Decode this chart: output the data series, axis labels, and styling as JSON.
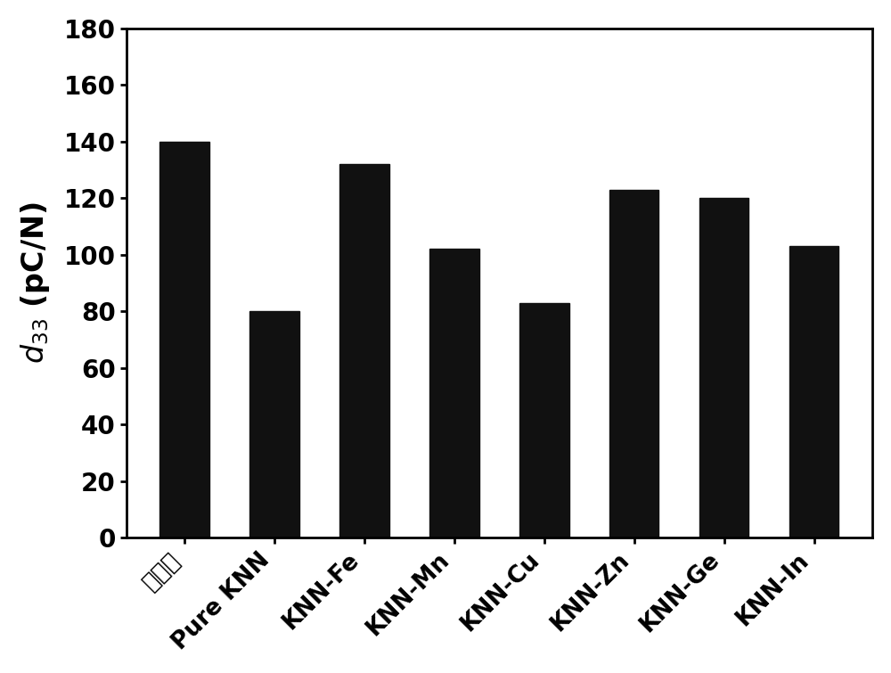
{
  "categories": [
    "本发明",
    "Pure KNN",
    "KNN-Fe",
    "KNN-Mn",
    "KNN-Cu",
    "KNN-Zn",
    "KNN-Ge",
    "KNN-In"
  ],
  "values": [
    140,
    80,
    132,
    102,
    83,
    123,
    120,
    103
  ],
  "bar_color": "#111111",
  "ylabel_italic": "$d_{33}$",
  "ylabel_normal": " (pC/N)",
  "ylim": [
    0,
    180
  ],
  "yticks": [
    0,
    20,
    40,
    60,
    80,
    100,
    120,
    140,
    160,
    180
  ],
  "background_color": "#ffffff",
  "bar_width": 0.55,
  "ylabel_fontsize": 24,
  "tick_fontsize": 20,
  "xtick_fontsize": 19,
  "tick_label_rotation": 45,
  "spine_linewidth": 2.0
}
